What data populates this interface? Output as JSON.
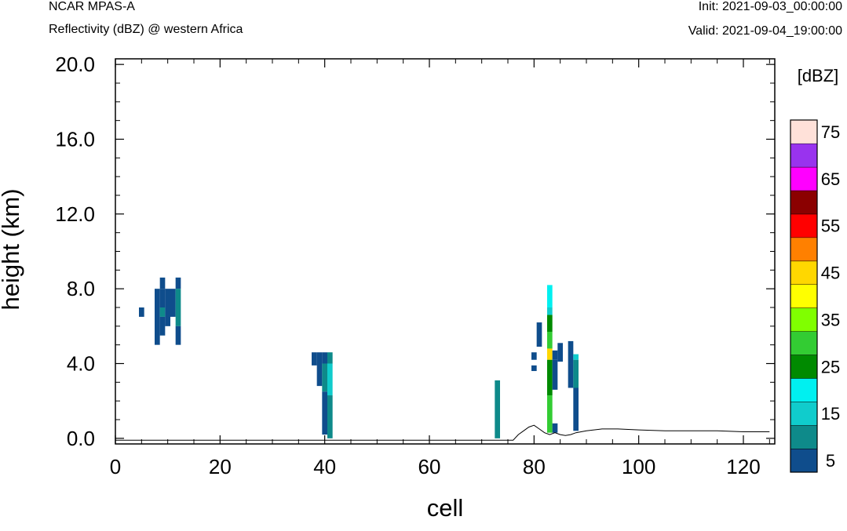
{
  "header": {
    "model": "NCAR MPAS-A",
    "subtitle": "Reflectivity (dBZ) @ western Africa",
    "init": "Init: 2021-09-03_00:00:00",
    "valid": "Valid: 2021-09-04_19:00:00"
  },
  "chart_data": {
    "type": "heatmap",
    "xlabel": "cell",
    "ylabel": "height (km)",
    "xlim": [
      0,
      126
    ],
    "ylim": [
      -0.3,
      20.3
    ],
    "x_ticks": [
      "0",
      "20",
      "40",
      "60",
      "80",
      "100",
      "120"
    ],
    "x_tick_values": [
      0,
      20,
      40,
      60,
      80,
      100,
      120
    ],
    "y_ticks": [
      "0.0",
      "4.0",
      "8.0",
      "12.0",
      "16.0",
      "20.0"
    ],
    "y_tick_values": [
      0,
      4,
      8,
      12,
      16,
      20
    ],
    "colorbar": {
      "unit": "[dBZ]",
      "labels": [
        "5",
        "15",
        "25",
        "35",
        "45",
        "55",
        "65",
        "75"
      ],
      "levels": [
        5,
        10,
        15,
        20,
        25,
        30,
        35,
        40,
        45,
        50,
        55,
        60,
        65,
        70,
        75
      ],
      "colors": [
        "#0f4d8c",
        "#0e8a8a",
        "#10cccc",
        "#00f0f0",
        "#008a00",
        "#33cc33",
        "#80ff00",
        "#ffff00",
        "#ffd700",
        "#ff8000",
        "#ff0000",
        "#8b0000",
        "#ff00ff",
        "#9933ee",
        "#ffe1d9"
      ]
    },
    "cells": [
      {
        "x": 5,
        "y0": 6.5,
        "y1": 7.0,
        "dbz": 5
      },
      {
        "x": 8,
        "y0": 5.0,
        "y1": 8.0,
        "dbz": 5
      },
      {
        "x": 9,
        "y0": 8.0,
        "y1": 8.6,
        "dbz": 5
      },
      {
        "x": 9,
        "y0": 7.0,
        "y1": 8.0,
        "dbz": 5
      },
      {
        "x": 9,
        "y0": 6.5,
        "y1": 7.0,
        "dbz": 10
      },
      {
        "x": 9,
        "y0": 5.5,
        "y1": 6.5,
        "dbz": 5
      },
      {
        "x": 10,
        "y0": 6.0,
        "y1": 8.0,
        "dbz": 5
      },
      {
        "x": 11,
        "y0": 6.5,
        "y1": 8.0,
        "dbz": 5
      },
      {
        "x": 12,
        "y0": 8.0,
        "y1": 8.6,
        "dbz": 5
      },
      {
        "x": 12,
        "y0": 6.0,
        "y1": 8.0,
        "dbz": 10
      },
      {
        "x": 12,
        "y0": 5.0,
        "y1": 6.0,
        "dbz": 5
      },
      {
        "x": 38,
        "y0": 3.9,
        "y1": 4.6,
        "dbz": 5
      },
      {
        "x": 39,
        "y0": 2.8,
        "y1": 4.6,
        "dbz": 5
      },
      {
        "x": 40,
        "y0": 4.0,
        "y1": 4.6,
        "dbz": 5
      },
      {
        "x": 40,
        "y0": 2.5,
        "y1": 4.0,
        "dbz": 10
      },
      {
        "x": 40,
        "y0": 0.2,
        "y1": 2.5,
        "dbz": 5
      },
      {
        "x": 41,
        "y0": 4.0,
        "y1": 4.6,
        "dbz": 10
      },
      {
        "x": 41,
        "y0": 2.3,
        "y1": 4.0,
        "dbz": 15
      },
      {
        "x": 41,
        "y0": 0.0,
        "y1": 2.3,
        "dbz": 10
      },
      {
        "x": 73,
        "y0": 0.0,
        "y1": 3.1,
        "dbz": 10
      },
      {
        "x": 80,
        "y0": 4.2,
        "y1": 4.6,
        "dbz": 5
      },
      {
        "x": 80,
        "y0": 3.6,
        "y1": 3.9,
        "dbz": 5
      },
      {
        "x": 81,
        "y0": 4.9,
        "y1": 6.2,
        "dbz": 5
      },
      {
        "x": 83,
        "y0": 7.0,
        "y1": 8.2,
        "dbz": 20
      },
      {
        "x": 83,
        "y0": 6.6,
        "y1": 7.0,
        "dbz": 15
      },
      {
        "x": 83,
        "y0": 5.7,
        "y1": 6.6,
        "dbz": 25
      },
      {
        "x": 83,
        "y0": 4.8,
        "y1": 5.7,
        "dbz": 30
      },
      {
        "x": 83,
        "y0": 4.2,
        "y1": 4.8,
        "dbz": 45
      },
      {
        "x": 83,
        "y0": 2.3,
        "y1": 4.2,
        "dbz": 25
      },
      {
        "x": 83,
        "y0": 0.3,
        "y1": 2.3,
        "dbz": 30
      },
      {
        "x": 84,
        "y0": 4.2,
        "y1": 4.7,
        "dbz": 5
      },
      {
        "x": 84,
        "y0": 2.6,
        "y1": 4.2,
        "dbz": 5
      },
      {
        "x": 84,
        "y0": 0.3,
        "y1": 0.8,
        "dbz": 5
      },
      {
        "x": 85,
        "y0": 4.1,
        "y1": 5.1,
        "dbz": 5
      },
      {
        "x": 87,
        "y0": 4.0,
        "y1": 5.2,
        "dbz": 5
      },
      {
        "x": 87,
        "y0": 2.7,
        "y1": 4.0,
        "dbz": 5
      },
      {
        "x": 88,
        "y0": 4.2,
        "y1": 4.5,
        "dbz": 15
      },
      {
        "x": 88,
        "y0": 2.7,
        "y1": 4.2,
        "dbz": 10
      },
      {
        "x": 88,
        "y0": 0.4,
        "y1": 2.7,
        "dbz": 5
      }
    ],
    "terrain": [
      [
        0,
        -0.1
      ],
      [
        76,
        -0.1
      ],
      [
        77,
        0.2
      ],
      [
        78,
        0.4
      ],
      [
        79,
        0.6
      ],
      [
        80,
        0.7
      ],
      [
        81,
        0.5
      ],
      [
        82,
        0.3
      ],
      [
        83,
        0.2
      ],
      [
        84,
        0.3
      ],
      [
        85,
        0.2
      ],
      [
        86,
        0.15
      ],
      [
        87,
        0.2
      ],
      [
        88,
        0.3
      ],
      [
        90,
        0.4
      ],
      [
        93,
        0.5
      ],
      [
        96,
        0.5
      ],
      [
        100,
        0.45
      ],
      [
        105,
        0.4
      ],
      [
        110,
        0.4
      ],
      [
        115,
        0.4
      ],
      [
        120,
        0.35
      ],
      [
        125,
        0.35
      ]
    ]
  }
}
